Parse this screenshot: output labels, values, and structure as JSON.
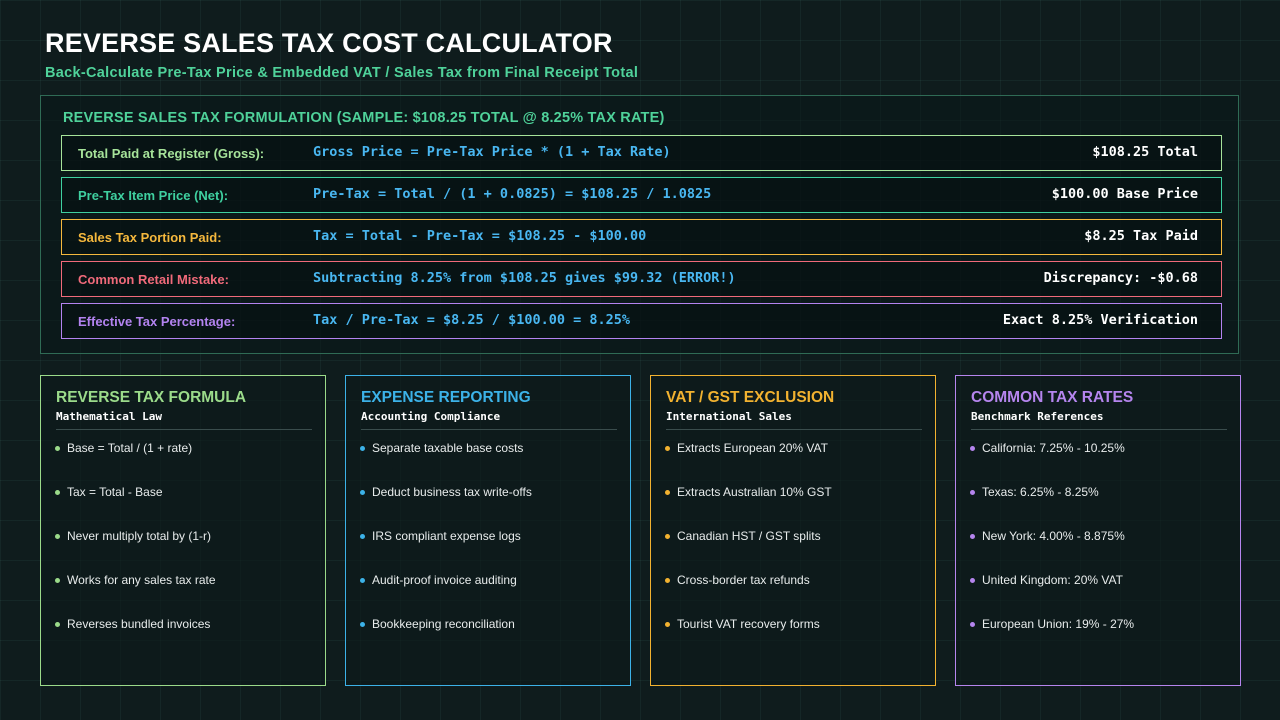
{
  "header": {
    "title": "REVERSE SALES TAX COST CALCULATOR",
    "subtitle": "Back-Calculate Pre-Tax Price & Embedded VAT / Sales Tax from Final Receipt Total"
  },
  "formulation": {
    "heading": "REVERSE SALES TAX FORMULATION (SAMPLE: $108.25 TOTAL @ 8.25% TAX RATE)",
    "rows": [
      {
        "label": "Total Paid at Register (Gross):",
        "equation": "Gross Price = Pre-Tax Price * (1 + Tax Rate)",
        "result": "$108.25 Total",
        "color": "#a6e39a"
      },
      {
        "label": "Pre-Tax Item Price (Net):",
        "equation": "Pre-Tax = Total / (1 + 0.0825) = $108.25 / 1.0825",
        "result": "$100.00 Base Price",
        "color": "#3fd0a0"
      },
      {
        "label": "Sales Tax Portion Paid:",
        "equation": "Tax = Total - Pre-Tax = $108.25 - $100.00",
        "result": "$8.25 Tax Paid",
        "color": "#f5b83d"
      },
      {
        "label": "Common Retail Mistake:",
        "equation": "Subtracting 8.25% from $108.25 gives $99.32 (ERROR!)",
        "result": "Discrepancy: -$0.68",
        "color": "#f06a7a"
      },
      {
        "label": "Effective Tax Percentage:",
        "equation": "Tax / Pre-Tax = $8.25 / $100.00 = 8.25%",
        "result": "Exact 8.25% Verification",
        "color": "#b383f0"
      }
    ]
  },
  "cards": [
    {
      "title": "REVERSE TAX FORMULA",
      "subtitle": "Mathematical Law",
      "color": "#9bdb8a",
      "items": [
        "Base = Total / (1 + rate)",
        "Tax = Total - Base",
        "Never multiply total by (1-r)",
        "Works for any sales tax rate",
        "Reverses bundled invoices"
      ]
    },
    {
      "title": "EXPENSE REPORTING",
      "subtitle": "Accounting Compliance",
      "color": "#3cb2e8",
      "items": [
        "Separate taxable base costs",
        "Deduct business tax write-offs",
        "IRS compliant expense logs",
        "Audit-proof invoice auditing",
        "Bookkeeping reconciliation"
      ]
    },
    {
      "title": "VAT / GST EXCLUSION",
      "subtitle": "International Sales",
      "color": "#f2b230",
      "items": [
        "Extracts European 20% VAT",
        "Extracts Australian 10% GST",
        "Canadian HST / GST splits",
        "Cross-border tax refunds",
        "Tourist VAT recovery forms"
      ]
    },
    {
      "title": "COMMON TAX RATES",
      "subtitle": "Benchmark References",
      "color": "#b585ee",
      "items": [
        "California: 7.25% - 10.25%",
        "Texas: 6.25% - 8.25%",
        "New York: 4.00% - 8.875%",
        "United Kingdom: 20% VAT",
        "European Union: 19% - 27%"
      ]
    }
  ]
}
